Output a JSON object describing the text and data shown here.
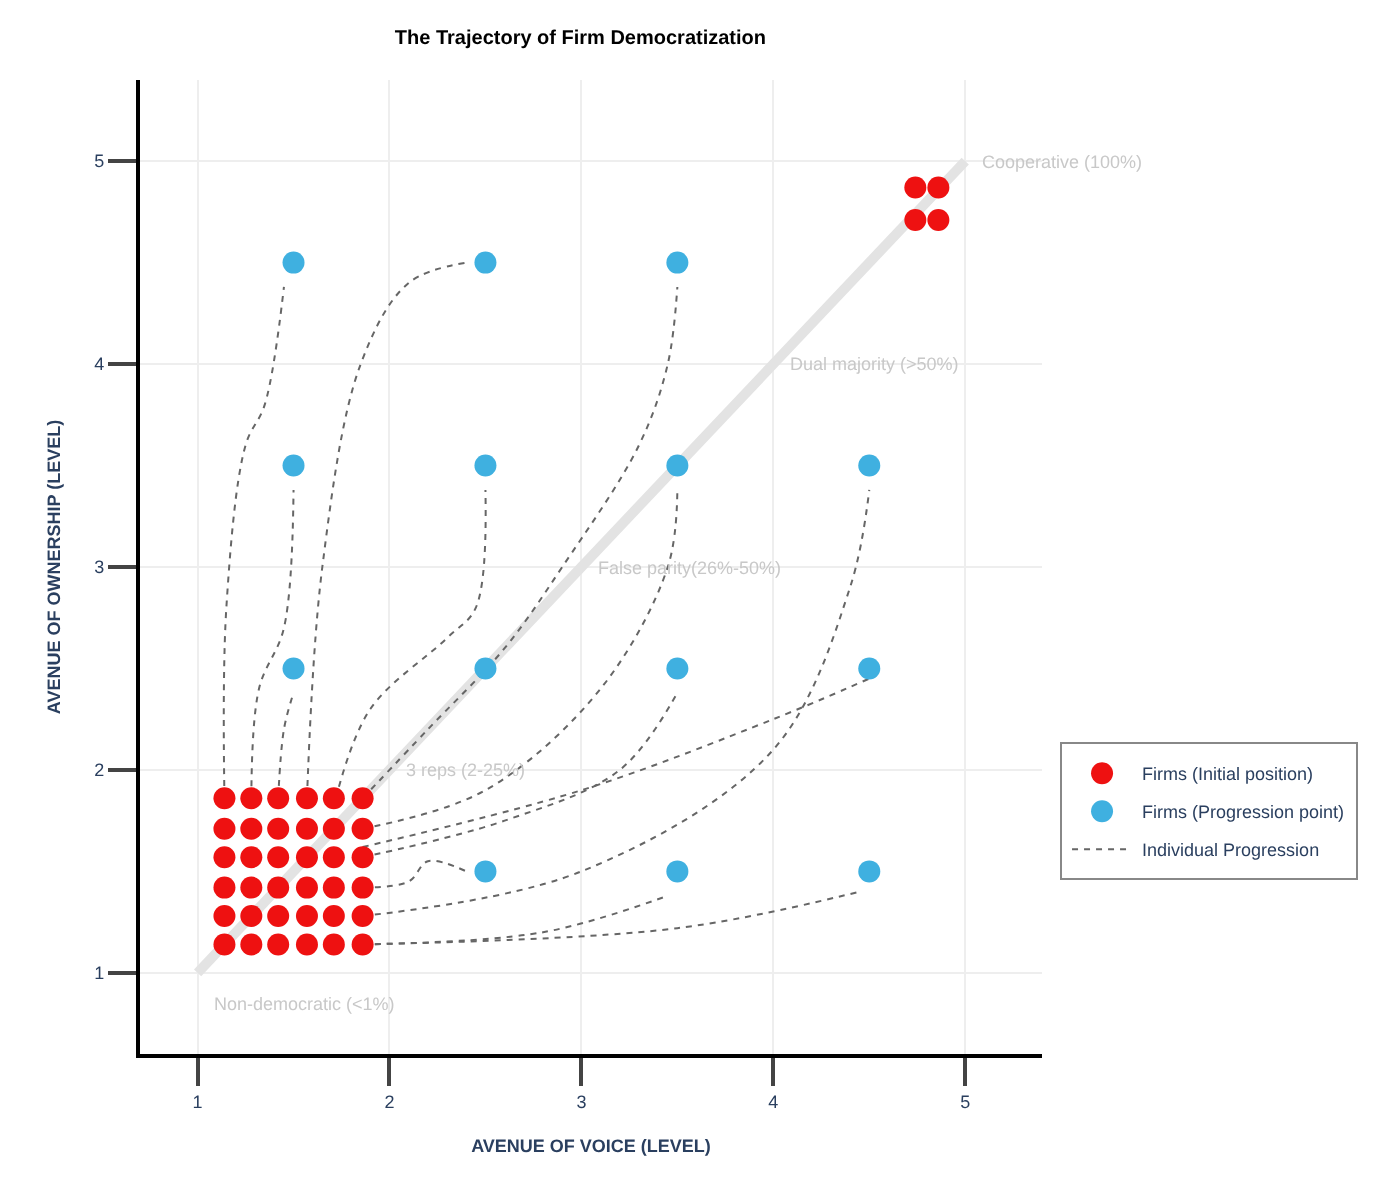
{
  "chart_data": {
    "type": "scatter",
    "title": "The Trajectory of Firm Democratization",
    "xlabel": "AVENUE OF VOICE (LEVEL)",
    "ylabel": "AVENUE OF OWNERSHIP (LEVEL)",
    "xlim": [
      0.7,
      5.4
    ],
    "ylim": [
      0.6,
      5.4
    ],
    "xticks": [
      1,
      2,
      3,
      4,
      5
    ],
    "yticks": [
      1,
      2,
      3,
      4,
      5
    ],
    "grid": true,
    "legend": "right",
    "marker": "circle",
    "series": [
      {
        "type": "line",
        "color": "#e3e3e3",
        "line_style": "solid",
        "marker": "none",
        "x": [
          1,
          5
        ],
        "values": [
          1,
          5
        ]
      },
      {
        "type": "line",
        "name": "Individual Progression",
        "color": "#666666",
        "line_style": "dotted",
        "marker": "none",
        "x": [
          1.14,
          1.15,
          1.25,
          1.35,
          1.45,
          null,
          1.28,
          1.32,
          1.45,
          1.5,
          null,
          1.42,
          1.45,
          1.5,
          null,
          1.57,
          1.65,
          1.85,
          2.1,
          2.4,
          null,
          1.72,
          1.9,
          2.3,
          2.45,
          2.5,
          null,
          1.86,
          2.2,
          2.6,
          2.9,
          3.3,
          3.45,
          3.5,
          null,
          1.86,
          2.5,
          3.1,
          3.45,
          3.5,
          null,
          1.86,
          2.6,
          3.2,
          3.5,
          null,
          1.86,
          2.1,
          2.2,
          2.4,
          null,
          1.86,
          3.0,
          4.0,
          4.5,
          null,
          1.86,
          3.0,
          4.0,
          4.4,
          4.5,
          null,
          1.86,
          2.8,
          3.45,
          null,
          1.86,
          3.5,
          4.45
        ],
        "values": [
          1.86,
          2.8,
          3.6,
          3.8,
          4.38,
          null,
          1.86,
          2.4,
          2.7,
          3.38,
          null,
          1.86,
          2.2,
          2.38,
          null,
          1.86,
          3.0,
          4.0,
          4.4,
          4.5,
          null,
          1.86,
          2.3,
          2.65,
          2.8,
          3.38,
          null,
          1.86,
          2.2,
          2.6,
          3.0,
          3.6,
          4.0,
          4.38,
          null,
          1.71,
          1.9,
          2.4,
          3.0,
          3.38,
          null,
          1.57,
          1.75,
          2.0,
          2.38,
          null,
          1.42,
          1.45,
          1.55,
          1.5,
          null,
          1.62,
          1.9,
          2.25,
          2.45,
          null,
          1.28,
          1.5,
          2.1,
          2.9,
          3.38,
          null,
          1.14,
          1.2,
          1.38,
          null,
          1.14,
          1.22,
          1.4
        ]
      },
      {
        "name": "Firms (Initial position)",
        "color": "#ee1111",
        "x": [
          1.14,
          1.28,
          1.42,
          1.57,
          1.71,
          1.86,
          1.14,
          1.28,
          1.42,
          1.57,
          1.71,
          1.86,
          1.14,
          1.28,
          1.42,
          1.57,
          1.71,
          1.86,
          1.14,
          1.28,
          1.42,
          1.57,
          1.71,
          1.86,
          1.14,
          1.28,
          1.42,
          1.57,
          1.71,
          1.86,
          1.14,
          1.28,
          1.42,
          1.57,
          1.71,
          1.86,
          4.74,
          4.86,
          4.74,
          4.86
        ],
        "values": [
          1.86,
          1.86,
          1.86,
          1.86,
          1.86,
          1.86,
          1.71,
          1.71,
          1.71,
          1.71,
          1.71,
          1.71,
          1.57,
          1.57,
          1.57,
          1.57,
          1.57,
          1.57,
          1.42,
          1.42,
          1.42,
          1.42,
          1.42,
          1.42,
          1.28,
          1.28,
          1.28,
          1.28,
          1.28,
          1.28,
          1.14,
          1.14,
          1.14,
          1.14,
          1.14,
          1.14,
          4.87,
          4.87,
          4.71,
          4.71
        ]
      },
      {
        "name": "Firms (Progression point)",
        "color": "#3fb0e0",
        "x": [
          1.5,
          2.5,
          3.5,
          1.5,
          2.5,
          3.5,
          4.5,
          1.5,
          2.5,
          3.5,
          4.5,
          2.5,
          3.5,
          4.5
        ],
        "values": [
          4.5,
          4.5,
          4.5,
          3.5,
          3.5,
          3.5,
          3.5,
          2.5,
          2.5,
          2.5,
          2.5,
          1.5,
          1.5,
          1.5
        ]
      }
    ],
    "annotations": [
      {
        "text": "Cooperative (100%)",
        "x": 5,
        "y": 5
      },
      {
        "text": "Dual majority (>50%)",
        "x": 4,
        "y": 4
      },
      {
        "text": "False parity(26%-50%)",
        "x": 3,
        "y": 3
      },
      {
        "text": "3 reps (2-25%)",
        "x": 2,
        "y": 2
      },
      {
        "text": "Non-democratic (<1%)",
        "x": 1,
        "y": 1
      }
    ]
  }
}
